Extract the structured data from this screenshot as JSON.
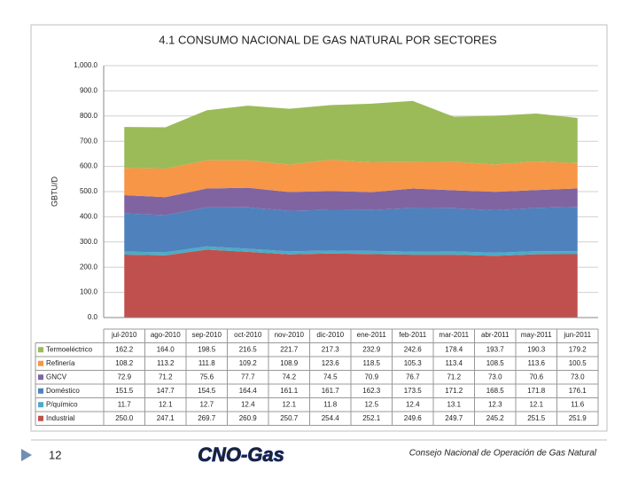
{
  "chart_data": {
    "type": "stacked-area",
    "title": "4.1  CONSUMO NACIONAL DE GAS NATURAL POR SECTORES",
    "y_label": "GBTU/D",
    "categories": [
      "jul-2010",
      "ago-2010",
      "sep-2010",
      "oct-2010",
      "nov-2010",
      "dic-2010",
      "ene-2011",
      "feb-2011",
      "mar-2011",
      "abr-2011",
      "may-2011",
      "jun-2011"
    ],
    "ylim": [
      0,
      1000
    ],
    "yticks": [
      {
        "value": 0,
        "label": "0.0"
      },
      {
        "value": 100,
        "label": "100.0"
      },
      {
        "value": 200,
        "label": "200.0"
      },
      {
        "value": 300,
        "label": "300.0"
      },
      {
        "value": 400,
        "label": "400.0"
      },
      {
        "value": 500,
        "label": "500.0"
      },
      {
        "value": 600,
        "label": "600.0"
      },
      {
        "value": 700,
        "label": "700.0"
      },
      {
        "value": 800,
        "label": "800.0"
      },
      {
        "value": 900,
        "label": "900.0"
      },
      {
        "value": 1000,
        "label": "1,000.0"
      }
    ],
    "grid": true,
    "series": [
      {
        "name": "Industrial",
        "color": "#c0504d",
        "values": [
          250.0,
          247.1,
          269.7,
          260.9,
          250.7,
          254.4,
          252.1,
          249.6,
          249.7,
          245.2,
          251.5,
          251.9
        ],
        "value_labels": [
          "250.0",
          "247.1",
          "269.7",
          "260.9",
          "250.7",
          "254.4",
          "252.1",
          "249.6",
          "249.7",
          "245.2",
          "251.5",
          "251.9"
        ]
      },
      {
        "name": "P/químico",
        "color": "#4bacc6",
        "values": [
          11.7,
          12.1,
          12.7,
          12.4,
          12.1,
          11.8,
          12.5,
          12.4,
          13.1,
          12.3,
          12.1,
          11.6
        ],
        "value_labels": [
          "11.7",
          "12.1",
          "12.7",
          "12.4",
          "12.1",
          "11.8",
          "12.5",
          "12.4",
          "13.1",
          "12.3",
          "12.1",
          "11.6"
        ]
      },
      {
        "name": "Doméstico",
        "color": "#4f81bd",
        "values": [
          151.5,
          147.7,
          154.5,
          164.4,
          161.1,
          161.7,
          162.3,
          173.5,
          171.2,
          168.5,
          171.8,
          176.1
        ],
        "value_labels": [
          "151.5",
          "147.7",
          "154.5",
          "164.4",
          "161.1",
          "161.7",
          "162.3",
          "173.5",
          "171.2",
          "168.5",
          "171.8",
          "176.1"
        ]
      },
      {
        "name": "GNCV",
        "color": "#8064a2",
        "values": [
          72.9,
          71.2,
          75.6,
          77.7,
          74.2,
          74.5,
          70.9,
          76.7,
          71.2,
          73.0,
          70.6,
          73.0
        ],
        "value_labels": [
          "72.9",
          "71.2",
          "75.6",
          "77.7",
          "74.2",
          "74.5",
          "70.9",
          "76.7",
          "71.2",
          "73.0",
          "70.6",
          "73.0"
        ]
      },
      {
        "name": "Refinería",
        "color": "#f79646",
        "values": [
          108.2,
          113.2,
          111.8,
          109.2,
          108.9,
          123.6,
          118.5,
          105.3,
          113.4,
          108.5,
          113.6,
          100.5
        ],
        "value_labels": [
          "108.2",
          "113.2",
          "111.8",
          "109.2",
          "108.9",
          "123.6",
          "118.5",
          "105.3",
          "113.4",
          "108.5",
          "113.6",
          "100.5"
        ]
      },
      {
        "name": "Termoeléctrico",
        "color": "#9bbb59",
        "values": [
          162.2,
          164.0,
          198.5,
          216.5,
          221.7,
          217.3,
          232.9,
          242.6,
          178.4,
          193.7,
          190.3,
          179.2
        ],
        "value_labels": [
          "162.2",
          "164.0",
          "198.5",
          "216.5",
          "221.7",
          "217.3",
          "232.9",
          "242.6",
          "178.4",
          "193.7",
          "190.3",
          "179.2"
        ]
      }
    ]
  },
  "footer": {
    "page_number": "12",
    "logo": "CNO-Gas",
    "organization": "Consejo Nacional de Operación de Gas Natural"
  }
}
